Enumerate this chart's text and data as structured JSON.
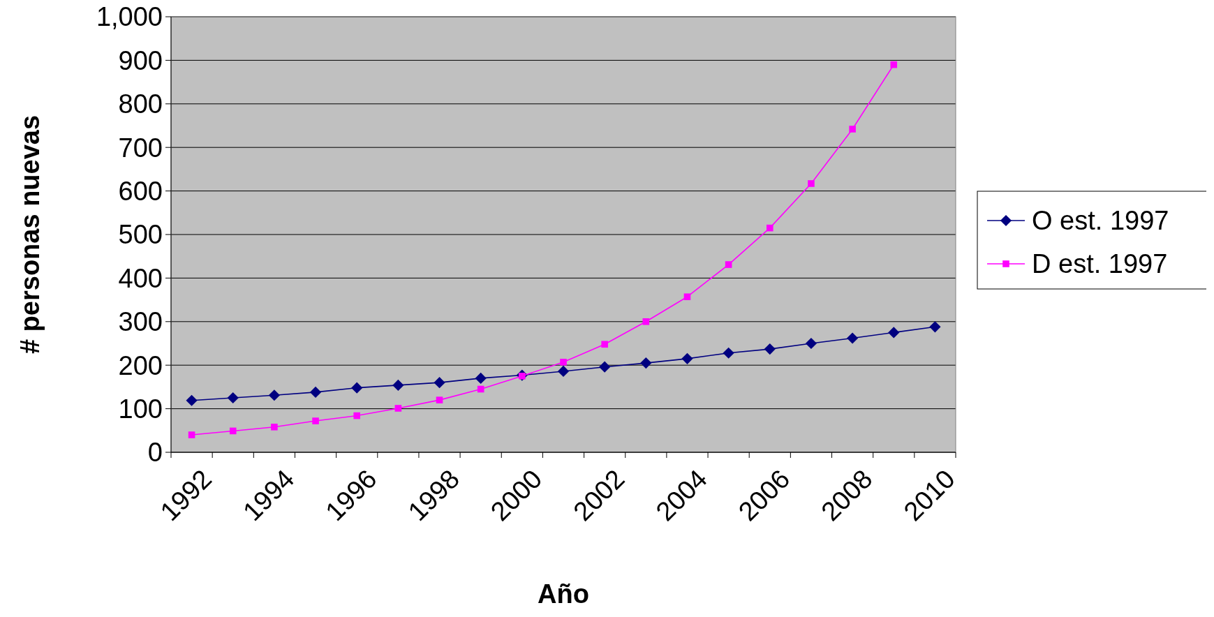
{
  "chart_data": {
    "type": "line",
    "xlabel": "Año",
    "ylabel": "# personas nuevas",
    "categories": [
      "1992",
      null,
      "1994",
      null,
      "1996",
      null,
      "1998",
      null,
      "2000",
      null,
      "2002",
      null,
      "2004",
      null,
      "2006",
      null,
      "2008",
      null,
      "2010"
    ],
    "series": [
      {
        "name": "O est. 1997",
        "color": "#000080",
        "marker": "diamond",
        "values": [
          119,
          125,
          131,
          138,
          148,
          154,
          160,
          170,
          177,
          186,
          196,
          205,
          215,
          228,
          237,
          250,
          262,
          275,
          288
        ]
      },
      {
        "name": "D est. 1997",
        "color": "#ff00ff",
        "marker": "square",
        "values": [
          40,
          49,
          58,
          72,
          84,
          101,
          120,
          145,
          175,
          207,
          248,
          300,
          357,
          431,
          515,
          617,
          742,
          890,
          null
        ]
      }
    ],
    "ylim": [
      0,
      1000
    ],
    "yticks": [
      0,
      100,
      200,
      300,
      400,
      500,
      600,
      700,
      800,
      900,
      {
        "value": 1000,
        "label": "1,000"
      }
    ],
    "grid": "y",
    "legend": "right"
  }
}
